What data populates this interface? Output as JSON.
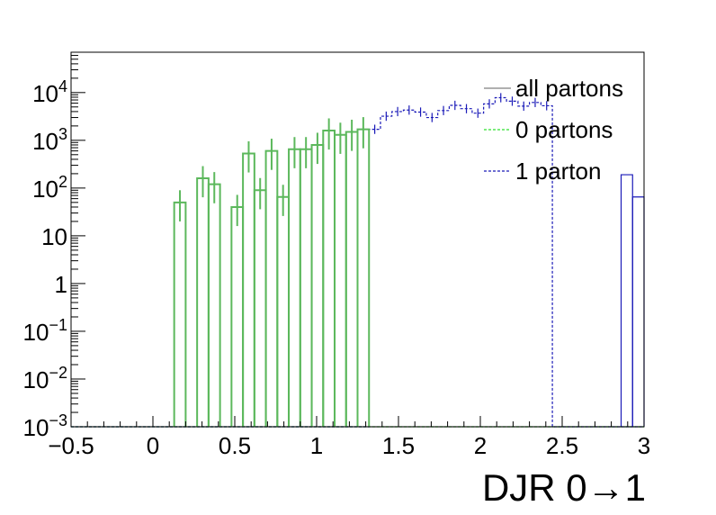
{
  "chart_data": {
    "type": "histogram",
    "xlabel": "DJR 0→1",
    "ylabel": "",
    "xlim": [
      -0.5,
      3.0
    ],
    "ylim": [
      0.001,
      70000
    ],
    "yscale": "log",
    "grid": false,
    "legend_position": "top-right",
    "x_ticks": [
      {
        "value": -0.5,
        "label": "−0.5"
      },
      {
        "value": 0,
        "label": "0"
      },
      {
        "value": 0.5,
        "label": "0.5"
      },
      {
        "value": 1,
        "label": "1"
      },
      {
        "value": 1.5,
        "label": "1.5"
      },
      {
        "value": 2,
        "label": "2"
      },
      {
        "value": 2.5,
        "label": "2.5"
      },
      {
        "value": 3,
        "label": "3"
      }
    ],
    "y_ticks": [
      {
        "value": 0.001,
        "base": "10",
        "exp": "−3"
      },
      {
        "value": 0.01,
        "base": "10",
        "exp": "−2"
      },
      {
        "value": 0.1,
        "base": "10",
        "exp": "−1"
      },
      {
        "value": 1,
        "base": "1",
        "exp": ""
      },
      {
        "value": 10,
        "base": "10",
        "exp": ""
      },
      {
        "value": 100,
        "base": "10",
        "exp": "2"
      },
      {
        "value": 1000,
        "base": "10",
        "exp": "3"
      },
      {
        "value": 10000,
        "base": "10",
        "exp": "4"
      }
    ],
    "bin_start": -0.5,
    "bin_width": 0.07,
    "series": [
      {
        "name": "all partons",
        "color": "#808080",
        "style": "solid",
        "values": [
          0.001,
          0.001,
          0.001,
          0.001,
          0.001,
          0.001,
          0.001,
          0.001,
          0.001,
          0.001,
          0.001,
          0.001,
          0.001,
          0.001,
          0.001,
          0.001,
          0.001,
          0.001,
          0.001,
          0.001,
          0.001,
          0.001,
          0.001,
          0.001,
          0.001,
          0.001,
          0.001,
          0.001,
          0.001,
          0.001,
          0.001,
          0.001,
          0.001,
          0.001,
          0.001,
          0.001,
          0.001,
          0.001,
          0.001,
          0.001,
          0.001,
          0.001,
          0.001,
          0.001,
          0.001,
          0.001,
          0.001,
          0.001,
          0.001,
          0.001
        ]
      },
      {
        "name": "0 partons",
        "color": "#2ee02e",
        "style": "dashed",
        "values": [
          0.001,
          0.001,
          0.001,
          0.001,
          0.001,
          0.001,
          0.001,
          0.001,
          0.001,
          0.001,
          0.001,
          0.001,
          0.001,
          0.001,
          0.001,
          0.001,
          0.001,
          0.001,
          0.001,
          0.001,
          0.001,
          0.001,
          0.001,
          0.001,
          0.001,
          0.001,
          0.001,
          0.001,
          0.001,
          0.001,
          0.001,
          0.001,
          0.001,
          0.001,
          0.001,
          0.001,
          0.001,
          0.001,
          0.001,
          0.001,
          0.001,
          0.001,
          0.001,
          0.001,
          0.001,
          0.001,
          0.001,
          0.001,
          0.001,
          0.001
        ]
      },
      {
        "name": "1 parton",
        "color": "#1a1ab8",
        "style": "dashed",
        "values": [
          0.001,
          0.001,
          0.001,
          0.001,
          0.001,
          0.001,
          0.001,
          0.001,
          0.001,
          0.001,
          0.001,
          0.001,
          0.001,
          0.001,
          0.001,
          0.001,
          0.001,
          0.001,
          0.001,
          0.001,
          0.001,
          0.001,
          0.001,
          0.001,
          0.001,
          0.001,
          1700,
          3200,
          4000,
          4300,
          3900,
          3000,
          4200,
          5400,
          4600,
          3700,
          5800,
          7800,
          6600,
          5200,
          6200,
          5300,
          0.001,
          0.001,
          0.001,
          0.001,
          0.001,
          0.001,
          0.001,
          0.001
        ]
      }
    ],
    "combined_histogram": {
      "color": "#5cb85c",
      "bins": [
        {
          "x0": 0.13,
          "x1": 0.2,
          "y": 50
        },
        {
          "x0": 0.27,
          "x1": 0.34,
          "y": 160
        },
        {
          "x0": 0.34,
          "x1": 0.41,
          "y": 120
        },
        {
          "x0": 0.48,
          "x1": 0.55,
          "y": 40
        },
        {
          "x0": 0.55,
          "x1": 0.62,
          "y": 530
        },
        {
          "x0": 0.62,
          "x1": 0.69,
          "y": 90
        },
        {
          "x0": 0.69,
          "x1": 0.76,
          "y": 600
        },
        {
          "x0": 0.76,
          "x1": 0.83,
          "y": 65
        },
        {
          "x0": 0.83,
          "x1": 0.9,
          "y": 650
        },
        {
          "x0": 0.9,
          "x1": 0.97,
          "y": 650
        },
        {
          "x0": 0.97,
          "x1": 1.04,
          "y": 800
        },
        {
          "x0": 1.04,
          "x1": 1.11,
          "y": 1600
        },
        {
          "x0": 1.11,
          "x1": 1.18,
          "y": 1300
        },
        {
          "x0": 1.18,
          "x1": 1.25,
          "y": 1500
        },
        {
          "x0": 1.25,
          "x1": 1.32,
          "y": 1700
        }
      ]
    },
    "tail_bins": [
      {
        "x0": 2.86,
        "x1": 2.93,
        "y": 190
      },
      {
        "x0": 2.93,
        "x1": 3.0,
        "y": 65
      }
    ]
  }
}
